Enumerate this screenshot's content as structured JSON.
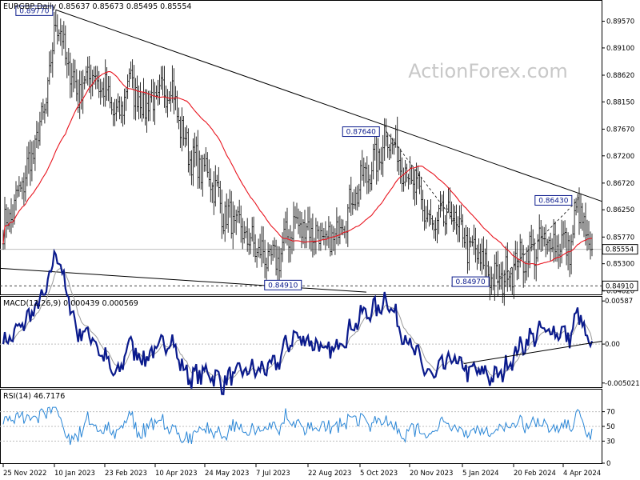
{
  "price_panel": {
    "header": "EURGBP,Daily  0.85637 0.85673 0.85495 0.85554",
    "watermark": "ActionForex.com",
    "y_ticks": [
      "0.89570",
      "0.89100",
      "0.88620",
      "0.88150",
      "0.87670",
      "0.87200",
      "0.86720",
      "0.86250",
      "0.85770",
      "0.85300",
      "0.84820"
    ],
    "last_price": "0.85554",
    "support_label": "0.84910",
    "annotations": [
      {
        "id": "high-jan",
        "text": "0.89770"
      },
      {
        "id": "high-oct",
        "text": "0.87640"
      },
      {
        "id": "high-apr",
        "text": "0.86430"
      },
      {
        "id": "low-jul",
        "text": "0.84910"
      },
      {
        "id": "low-jan",
        "text": "0.84970"
      }
    ]
  },
  "macd_panel": {
    "header": "MACD(12,26,9) 0.000439 0.000569",
    "y_ticks": [
      "0.00587",
      "0.00",
      "-0.005021"
    ]
  },
  "rsi_panel": {
    "header": "RSI(14) 46.7176",
    "y_ticks": [
      "70",
      "50",
      "30",
      "0"
    ]
  },
  "x_axis": {
    "labels": [
      "25 Nov 2022",
      "10 Jan 2023",
      "23 Feb 2023",
      "10 Apr 2023",
      "24 May 2023",
      "7 Jul 2023",
      "22 Aug 2023",
      "5 Oct 2023",
      "20 Nov 2023",
      "5 Jan 2024",
      "20 Feb 2024",
      "4 Apr 2024"
    ]
  },
  "colors": {
    "bars": "#1a1a1a",
    "moving_average": "#e8141e",
    "macd_line": "#0a1a8c",
    "signal_line": "#9a9a9a",
    "rsi_line": "#2a86d6",
    "trendline": "#000000"
  },
  "chart_data": {
    "type": "line",
    "instrument": "EURGBP",
    "timeframe": "Daily",
    "ohlc_last": {
      "open": 0.85637,
      "high": 0.85673,
      "low": 0.85495,
      "close": 0.85554
    },
    "x": [
      "2022-11-25",
      "2022-12-05",
      "2022-12-15",
      "2022-12-25",
      "2023-01-04",
      "2023-01-10",
      "2023-01-20",
      "2023-01-30",
      "2023-02-09",
      "2023-02-23",
      "2023-03-05",
      "2023-03-15",
      "2023-03-25",
      "2023-04-10",
      "2023-04-20",
      "2023-04-30",
      "2023-05-10",
      "2023-05-24",
      "2023-06-05",
      "2023-06-20",
      "2023-07-07",
      "2023-07-20",
      "2023-08-05",
      "2023-08-22",
      "2023-09-05",
      "2023-09-20",
      "2023-10-05",
      "2023-10-20",
      "2023-10-25",
      "2023-11-05",
      "2023-11-20",
      "2023-12-05",
      "2023-12-20",
      "2024-01-05",
      "2024-01-15",
      "2024-01-30",
      "2024-02-20",
      "2024-03-05",
      "2024-03-20",
      "2024-04-04",
      "2024-04-10",
      "2024-04-18"
    ],
    "series": [
      {
        "name": "EURGBP",
        "values": [
          0.859,
          0.863,
          0.869,
          0.875,
          0.884,
          0.897,
          0.888,
          0.883,
          0.887,
          0.883,
          0.878,
          0.886,
          0.881,
          0.882,
          0.885,
          0.876,
          0.871,
          0.869,
          0.862,
          0.859,
          0.855,
          0.853,
          0.86,
          0.859,
          0.856,
          0.862,
          0.868,
          0.872,
          0.8764,
          0.872,
          0.866,
          0.859,
          0.862,
          0.856,
          0.854,
          0.8497,
          0.854,
          0.856,
          0.857,
          0.856,
          0.8643,
          0.8555
        ]
      }
    ],
    "support_level": 0.8491,
    "ylim": [
      0.8476,
      0.8993
    ],
    "macd": {
      "fast": 12,
      "slow": 26,
      "signal": 9,
      "macd_last": 0.000439,
      "signal_last": 0.000569,
      "ylim": [
        -0.0062,
        0.0068
      ]
    },
    "rsi": {
      "period": 14,
      "last": 46.7176,
      "levels": [
        70,
        50,
        30
      ],
      "ylim": [
        0,
        100
      ]
    },
    "grid": false
  }
}
